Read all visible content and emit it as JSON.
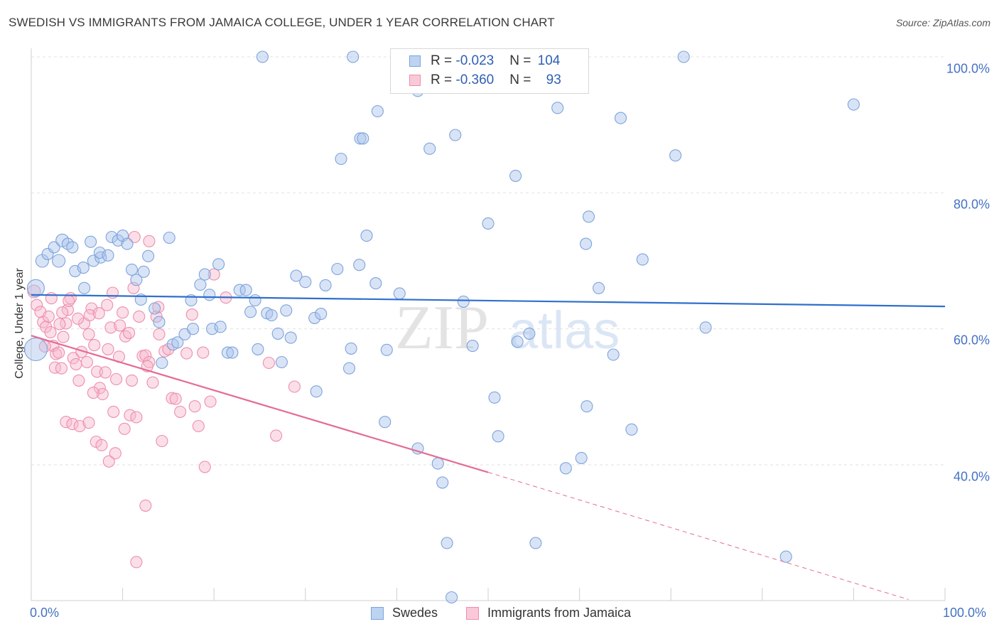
{
  "chart_data": {
    "type": "scatter",
    "title": "SWEDISH VS IMMIGRANTS FROM JAMAICA COLLEGE, UNDER 1 YEAR CORRELATION CHART",
    "source": "Source: ZipAtlas.com",
    "ylabel": "College, Under 1 year",
    "xlabel": "",
    "xlim": [
      0,
      100
    ],
    "ylim": [
      19,
      104
    ],
    "y_ticks": [
      {
        "value": 100,
        "label": "100.0%"
      },
      {
        "value": 80,
        "label": "80.0%"
      },
      {
        "value": 60,
        "label": "60.0%"
      },
      {
        "value": 40,
        "label": "40.0%"
      }
    ],
    "x_tick_labels": {
      "left": "0.0%",
      "right": "100.0%"
    },
    "watermark": {
      "zip": "ZIP",
      "atlas": "atlas"
    },
    "legend": {
      "rows": [
        {
          "r_label": "R = ",
          "r_value": "-0.023",
          "n_label": "N = ",
          "n_value": "104"
        },
        {
          "r_label": "R = ",
          "r_value": "-0.360",
          "n_label": "N = ",
          "n_value": "93"
        }
      ]
    },
    "series": [
      {
        "name": "Swedes",
        "color": "#a9c4ec",
        "stroke": "#7ea3dc",
        "line_color": "#2f6fcc",
        "trend": {
          "x0": 0,
          "y0": 65.0,
          "x1": 100,
          "y1": 63.3
        },
        "points": [
          [
            0.5,
            57,
            16
          ],
          [
            0.5,
            66,
            12
          ],
          [
            1.2,
            70,
            9
          ],
          [
            1.8,
            71,
            8
          ],
          [
            2.5,
            72,
            8
          ],
          [
            3.4,
            73,
            9
          ],
          [
            4.0,
            72.5,
            8
          ],
          [
            4.5,
            72,
            8
          ],
          [
            3.0,
            70,
            9
          ],
          [
            4.8,
            68.5,
            8
          ],
          [
            5.7,
            69,
            8
          ],
          [
            5.8,
            66,
            8
          ],
          [
            6.5,
            72.8,
            8
          ],
          [
            6.8,
            70,
            8
          ],
          [
            7.6,
            70.5,
            8
          ],
          [
            7.5,
            71.2,
            8
          ],
          [
            8.4,
            70.8,
            8
          ],
          [
            8.8,
            73.5,
            8
          ],
          [
            9.5,
            73,
            8
          ],
          [
            10,
            73.7,
            8
          ],
          [
            10.5,
            72.5,
            8
          ],
          [
            11,
            68.7,
            8
          ],
          [
            11.5,
            67.2,
            8
          ],
          [
            12.3,
            68.4,
            8
          ],
          [
            12.8,
            70.7,
            8
          ],
          [
            12,
            64.3,
            8
          ],
          [
            13.5,
            63,
            8
          ],
          [
            14,
            61,
            8
          ],
          [
            14.3,
            55,
            8
          ],
          [
            15.5,
            57.7,
            8
          ],
          [
            16,
            58,
            8
          ],
          [
            16.8,
            59.2,
            8
          ],
          [
            17.5,
            64.2,
            8
          ],
          [
            17.7,
            60,
            8
          ],
          [
            18.5,
            66.5,
            8
          ],
          [
            19,
            68,
            8
          ],
          [
            19.5,
            65,
            8
          ],
          [
            19.8,
            60,
            8
          ],
          [
            20.5,
            69.5,
            8
          ],
          [
            20.7,
            60.3,
            8
          ],
          [
            21.5,
            56.5,
            8
          ],
          [
            22,
            56.5,
            8
          ],
          [
            22.8,
            65.7,
            8
          ],
          [
            23.5,
            65.7,
            8
          ],
          [
            24,
            62.5,
            8
          ],
          [
            24.5,
            64.2,
            8
          ],
          [
            24.8,
            57,
            8
          ],
          [
            25.8,
            62.3,
            8
          ],
          [
            26.3,
            62,
            8
          ],
          [
            27,
            59.3,
            8
          ],
          [
            27.4,
            55.1,
            8
          ],
          [
            27.9,
            62.7,
            8
          ],
          [
            28.4,
            58.7,
            8
          ],
          [
            29,
            67.8,
            8
          ],
          [
            30,
            66.9,
            8
          ],
          [
            31,
            61.6,
            8
          ],
          [
            31.7,
            62.2,
            8
          ],
          [
            32.2,
            66.4,
            8
          ],
          [
            31.2,
            50.8,
            8
          ],
          [
            33.5,
            68.8,
            8
          ],
          [
            34.8,
            54.2,
            8
          ],
          [
            35,
            57.1,
            8
          ],
          [
            35.9,
            69.4,
            8
          ],
          [
            37.7,
            66.7,
            8
          ],
          [
            38.9,
            56.9,
            8
          ],
          [
            38.7,
            46.3,
            8
          ],
          [
            40.3,
            65.2,
            8
          ],
          [
            42.3,
            42.4,
            8
          ],
          [
            44.5,
            40.2,
            8
          ],
          [
            45,
            37.4,
            8
          ],
          [
            45.5,
            28.5,
            8
          ],
          [
            46,
            20.5,
            8
          ],
          [
            47.3,
            64,
            8
          ],
          [
            48.3,
            57.5,
            8
          ],
          [
            50.7,
            49.9,
            8
          ],
          [
            51.1,
            44.2,
            8
          ],
          [
            53.2,
            58.1,
            8
          ],
          [
            54.5,
            59.3,
            8
          ],
          [
            55.2,
            28.5,
            8
          ],
          [
            58.5,
            39.5,
            8
          ],
          [
            60.2,
            41,
            8
          ],
          [
            60.8,
            48.6,
            8
          ],
          [
            60.7,
            72.5,
            8
          ],
          [
            62.1,
            66,
            8
          ],
          [
            63.7,
            56.2,
            8
          ],
          [
            65.7,
            45.2,
            8
          ],
          [
            70.5,
            85.5,
            8
          ],
          [
            73.8,
            60.2,
            8
          ],
          [
            71.4,
            100,
            8
          ],
          [
            82.6,
            26.5,
            8
          ],
          [
            15.1,
            73.4,
            8
          ],
          [
            35.2,
            100,
            8
          ],
          [
            33.9,
            85,
            8
          ],
          [
            36,
            88,
            8
          ],
          [
            36.3,
            88,
            8
          ],
          [
            36.7,
            73.7,
            8
          ],
          [
            37.9,
            92,
            8
          ],
          [
            42.3,
            95,
            8
          ],
          [
            43.6,
            86.5,
            8
          ],
          [
            46.4,
            88.5,
            8
          ],
          [
            50,
            75.5,
            8
          ],
          [
            53,
            82.5,
            8
          ],
          [
            57.6,
            92.5,
            8
          ],
          [
            61,
            76.5,
            8
          ],
          [
            64.5,
            91,
            8
          ],
          [
            66.9,
            70.2,
            8
          ],
          [
            25.3,
            100,
            8
          ],
          [
            90,
            93,
            8
          ]
        ]
      },
      {
        "name": "Immigrants from Jamaica",
        "color": "#f7b9cc",
        "stroke": "#ee8eaa",
        "line_color": "#e56b94",
        "trend": {
          "x0": 0,
          "y0": 59.0,
          "x1": 50,
          "y1": 38.9
        },
        "trend_dashed": {
          "x0": 50,
          "y0": 38.9,
          "x1": 96,
          "y1": 20.2
        },
        "points": [
          [
            0.3,
            65.5,
            9
          ],
          [
            0.6,
            63.5,
            8
          ],
          [
            1.0,
            62.5,
            8
          ],
          [
            1.3,
            61,
            8
          ],
          [
            1.6,
            60.3,
            8
          ],
          [
            1.9,
            61.8,
            8
          ],
          [
            2.1,
            59.5,
            8
          ],
          [
            2.4,
            57.5,
            8
          ],
          [
            2.7,
            56.3,
            8
          ],
          [
            3.0,
            56.5,
            8
          ],
          [
            1.5,
            57.4,
            8
          ],
          [
            2.6,
            54.3,
            8
          ],
          [
            3.3,
            54.2,
            8
          ],
          [
            3.5,
            58.8,
            8
          ],
          [
            3.8,
            60.8,
            8
          ],
          [
            4.0,
            62.8,
            8
          ],
          [
            4.3,
            64.5,
            8
          ],
          [
            4.6,
            55.7,
            8
          ],
          [
            4.9,
            54.8,
            8
          ],
          [
            5.2,
            52.4,
            8
          ],
          [
            5.5,
            56.6,
            8
          ],
          [
            5.8,
            60.8,
            8
          ],
          [
            6.1,
            55.1,
            8
          ],
          [
            6.3,
            59.2,
            8
          ],
          [
            6.6,
            63,
            8
          ],
          [
            6.9,
            57.6,
            8
          ],
          [
            7.2,
            53.7,
            8
          ],
          [
            7.5,
            51.3,
            8
          ],
          [
            7.8,
            50.4,
            8
          ],
          [
            8.1,
            53.6,
            8
          ],
          [
            8.4,
            57,
            8
          ],
          [
            8.7,
            60.2,
            8
          ],
          [
            9.0,
            47.8,
            8
          ],
          [
            9.3,
            52.6,
            8
          ],
          [
            9.6,
            55.9,
            8
          ],
          [
            10,
            62.4,
            8
          ],
          [
            10.3,
            58.9,
            8
          ],
          [
            10.7,
            59.4,
            8
          ],
          [
            11.0,
            52.4,
            8
          ],
          [
            11.2,
            66,
            8
          ],
          [
            11.8,
            61.8,
            8
          ],
          [
            12.2,
            56,
            8
          ],
          [
            12.5,
            56.1,
            8
          ],
          [
            12.9,
            55.1,
            8
          ],
          [
            13.3,
            52.1,
            8
          ],
          [
            13.7,
            61.8,
            8
          ],
          [
            14,
            59.2,
            8
          ],
          [
            14.6,
            56.7,
            8
          ],
          [
            15,
            57,
            8
          ],
          [
            15.4,
            49.8,
            8
          ],
          [
            15.8,
            49.7,
            8
          ],
          [
            16.3,
            47.8,
            8
          ],
          [
            17,
            56.4,
            8
          ],
          [
            17.6,
            62.1,
            8
          ],
          [
            18.3,
            45.7,
            8
          ],
          [
            18.8,
            56.5,
            8
          ],
          [
            19,
            39.7,
            8
          ],
          [
            19.6,
            49.3,
            8
          ],
          [
            20,
            68,
            8
          ],
          [
            21.3,
            64.6,
            8
          ],
          [
            26,
            55,
            8
          ],
          [
            26.8,
            44.3,
            8
          ],
          [
            28.8,
            51.5,
            8
          ],
          [
            3.8,
            46.3,
            8
          ],
          [
            4.5,
            46,
            8
          ],
          [
            5.3,
            45.7,
            8
          ],
          [
            6.3,
            46.2,
            8
          ],
          [
            7.1,
            43.4,
            8
          ],
          [
            7.7,
            42.9,
            8
          ],
          [
            8.5,
            40.5,
            8
          ],
          [
            9.2,
            41.7,
            8
          ],
          [
            10.2,
            45.3,
            8
          ],
          [
            10.8,
            47.3,
            8
          ],
          [
            11.5,
            47,
            8
          ],
          [
            12.7,
            54.5,
            8
          ],
          [
            14.3,
            43.5,
            8
          ],
          [
            12.5,
            34,
            8
          ],
          [
            11.5,
            25.7,
            8
          ],
          [
            13.9,
            63.2,
            8
          ],
          [
            3.4,
            62.4,
            8
          ],
          [
            9.7,
            60.5,
            8
          ],
          [
            6.4,
            62,
            8
          ],
          [
            5.1,
            61.5,
            8
          ],
          [
            7.4,
            62.3,
            8
          ],
          [
            8.9,
            65.3,
            8
          ],
          [
            12.9,
            72.9,
            8
          ],
          [
            17.9,
            48.6,
            8
          ],
          [
            11.3,
            73.5,
            8
          ],
          [
            4.1,
            64.1,
            8
          ],
          [
            2.2,
            64.5,
            8
          ],
          [
            3.1,
            60.7,
            8
          ],
          [
            6.8,
            50.6,
            8
          ],
          [
            8.3,
            63.5,
            8
          ]
        ]
      }
    ]
  },
  "bottom_legend": {
    "series1": "Swedes",
    "series2": "Immigrants from Jamaica"
  }
}
